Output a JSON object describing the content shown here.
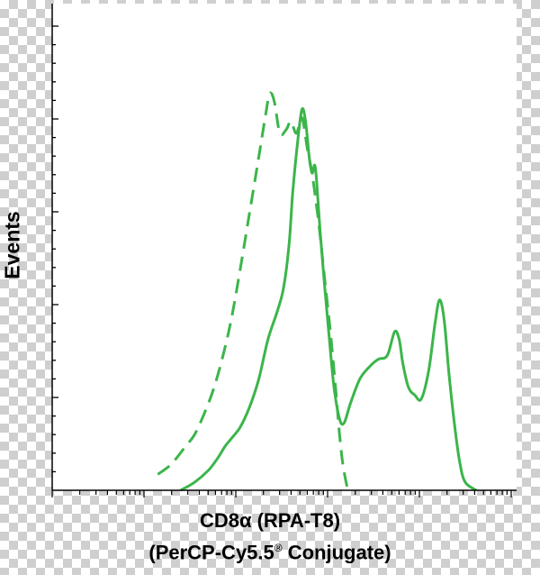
{
  "chart_data": {
    "type": "line",
    "title": "",
    "ylabel": "Events",
    "xlabel_line1": "CD8α (RPA-T8)",
    "xlabel_line2_prefix": "(PerCP-Cy5.5",
    "xlabel_line2_sup": "®",
    "xlabel_line2_suffix": " Conjugate)",
    "x_scale": "log",
    "xlim": [
      -1,
      4
    ],
    "ylim": [
      0,
      100
    ],
    "grid": false,
    "colors": {
      "series": "#3bb54a",
      "axes": "#000000"
    },
    "series": [
      {
        "style": "solid",
        "points": [
          [
            0.4,
            0
          ],
          [
            0.55,
            2
          ],
          [
            0.7,
            5
          ],
          [
            0.8,
            8
          ],
          [
            0.88,
            11
          ],
          [
            0.95,
            13
          ],
          [
            1.05,
            16
          ],
          [
            1.15,
            21
          ],
          [
            1.25,
            28
          ],
          [
            1.35,
            38
          ],
          [
            1.45,
            45
          ],
          [
            1.52,
            51
          ],
          [
            1.58,
            62
          ],
          [
            1.62,
            75
          ],
          [
            1.67,
            87
          ],
          [
            1.72,
            96
          ],
          [
            1.76,
            93
          ],
          [
            1.8,
            84
          ],
          [
            1.83,
            80
          ],
          [
            1.86,
            82
          ],
          [
            1.88,
            78
          ],
          [
            1.92,
            65
          ],
          [
            1.97,
            51
          ],
          [
            2.02,
            38
          ],
          [
            2.07,
            26
          ],
          [
            2.13,
            18
          ],
          [
            2.18,
            17
          ],
          [
            2.25,
            22
          ],
          [
            2.35,
            28
          ],
          [
            2.45,
            31
          ],
          [
            2.55,
            33
          ],
          [
            2.65,
            34
          ],
          [
            2.73,
            40
          ],
          [
            2.78,
            38
          ],
          [
            2.82,
            32
          ],
          [
            2.88,
            26
          ],
          [
            2.95,
            24
          ],
          [
            3.02,
            23
          ],
          [
            3.1,
            30
          ],
          [
            3.17,
            42
          ],
          [
            3.22,
            48
          ],
          [
            3.27,
            43
          ],
          [
            3.32,
            30
          ],
          [
            3.38,
            17
          ],
          [
            3.44,
            7
          ],
          [
            3.5,
            2
          ],
          [
            3.62,
            0
          ]
        ]
      },
      {
        "style": "dashed",
        "points": [
          [
            0.15,
            4
          ],
          [
            0.27,
            6
          ],
          [
            0.35,
            8
          ],
          [
            0.45,
            11
          ],
          [
            0.55,
            14
          ],
          [
            0.65,
            19
          ],
          [
            0.75,
            25
          ],
          [
            0.85,
            33
          ],
          [
            0.95,
            43
          ],
          [
            1.05,
            56
          ],
          [
            1.15,
            70
          ],
          [
            1.25,
            84
          ],
          [
            1.32,
            94
          ],
          [
            1.37,
            100
          ],
          [
            1.42,
            98
          ],
          [
            1.48,
            90
          ],
          [
            1.55,
            91
          ],
          [
            1.6,
            93
          ],
          [
            1.66,
            90
          ],
          [
            1.72,
            94
          ],
          [
            1.78,
            86
          ],
          [
            1.83,
            80
          ],
          [
            1.9,
            68
          ],
          [
            1.97,
            53
          ],
          [
            2.03,
            40
          ],
          [
            2.09,
            25
          ],
          [
            2.13,
            14
          ],
          [
            2.17,
            6
          ],
          [
            2.22,
            0
          ]
        ]
      }
    ]
  }
}
